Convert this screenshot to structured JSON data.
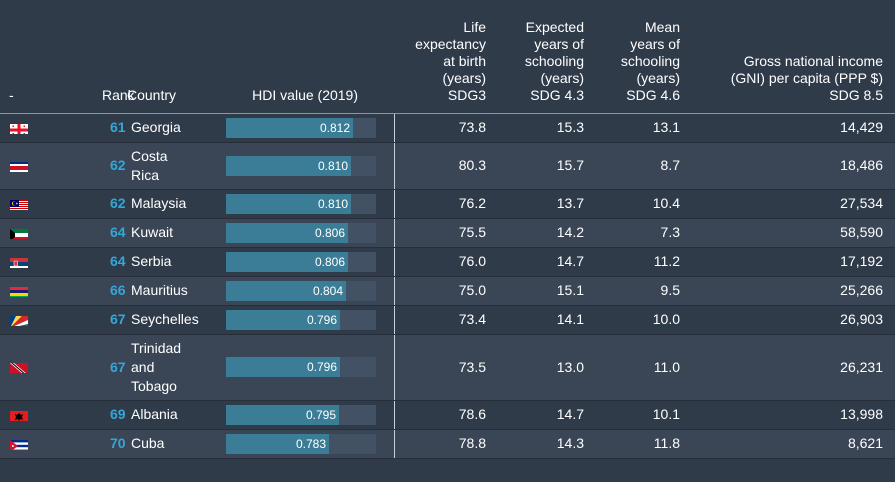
{
  "headers": {
    "flag": "-",
    "rank": "Rank",
    "country": "Country",
    "hdi": "HDI value (2019)",
    "life_expectancy": [
      "Life",
      "expectancy",
      "at birth",
      "(years)",
      "SDG3"
    ],
    "expected_schooling": [
      "Expected",
      "years of",
      "schooling",
      "(years)",
      "SDG 4.3"
    ],
    "mean_schooling": [
      "Mean",
      "years of",
      "schooling",
      "(years)",
      "SDG 4.6"
    ],
    "gni": [
      "Gross national income",
      "(GNI) per capita (PPP $)",
      "SDG 8.5"
    ]
  },
  "colors": {
    "background": "#303b4a",
    "row_alt": "#3a4555",
    "rank_accent": "#35a6d8",
    "bar_fill": "#3b7d96",
    "bar_track": "#435164"
  },
  "hdi_scale_max": 1.0,
  "rows": [
    {
      "flag": "georgia-flag-icon",
      "rank": "61",
      "country": [
        "Georgia"
      ],
      "hdi": "0.812",
      "life": "73.8",
      "expected": "15.3",
      "mean": "13.1",
      "gni": "14,429"
    },
    {
      "flag": "costa-rica-flag-icon",
      "rank": "62",
      "country": [
        "Costa",
        "Rica"
      ],
      "hdi": "0.810",
      "life": "80.3",
      "expected": "15.7",
      "mean": "8.7",
      "gni": "18,486"
    },
    {
      "flag": "malaysia-flag-icon",
      "rank": "62",
      "country": [
        "Malaysia"
      ],
      "hdi": "0.810",
      "life": "76.2",
      "expected": "13.7",
      "mean": "10.4",
      "gni": "27,534"
    },
    {
      "flag": "kuwait-flag-icon",
      "rank": "64",
      "country": [
        "Kuwait"
      ],
      "hdi": "0.806",
      "life": "75.5",
      "expected": "14.2",
      "mean": "7.3",
      "gni": "58,590"
    },
    {
      "flag": "serbia-flag-icon",
      "rank": "64",
      "country": [
        "Serbia"
      ],
      "hdi": "0.806",
      "life": "76.0",
      "expected": "14.7",
      "mean": "11.2",
      "gni": "17,192"
    },
    {
      "flag": "mauritius-flag-icon",
      "rank": "66",
      "country": [
        "Mauritius"
      ],
      "hdi": "0.804",
      "life": "75.0",
      "expected": "15.1",
      "mean": "9.5",
      "gni": "25,266"
    },
    {
      "flag": "seychelles-flag-icon",
      "rank": "67",
      "country": [
        "Seychelles"
      ],
      "hdi": "0.796",
      "life": "73.4",
      "expected": "14.1",
      "mean": "10.0",
      "gni": "26,903"
    },
    {
      "flag": "trinidad-and-tobago-flag-icon",
      "rank": "67",
      "country": [
        "Trinidad",
        "and",
        "Tobago"
      ],
      "hdi": "0.796",
      "life": "73.5",
      "expected": "13.0",
      "mean": "11.0",
      "gni": "26,231"
    },
    {
      "flag": "albania-flag-icon",
      "rank": "69",
      "country": [
        "Albania"
      ],
      "hdi": "0.795",
      "life": "78.6",
      "expected": "14.7",
      "mean": "10.1",
      "gni": "13,998"
    },
    {
      "flag": "cuba-flag-icon",
      "rank": "70",
      "country": [
        "Cuba"
      ],
      "hdi": "0.783",
      "life": "78.8",
      "expected": "14.3",
      "mean": "11.8",
      "gni": "8,621"
    }
  ]
}
